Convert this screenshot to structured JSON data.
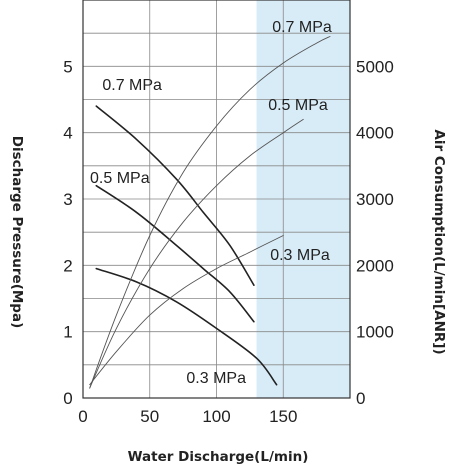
{
  "chart_data": {
    "type": "line",
    "title": "",
    "xlabel": "Water Discharge(L/min)",
    "ylabel": "Discharge Pressure(Mpa)",
    "y2label": "Air Consumption(L/min[ANR])",
    "xlim": [
      0,
      200
    ],
    "ylim": [
      0,
      6
    ],
    "y2lim": [
      0,
      6000
    ],
    "xticks": [
      "0",
      "50",
      "100",
      "150"
    ],
    "yticks": [
      "0",
      "1",
      "2",
      "3",
      "4",
      "5"
    ],
    "y2ticks": [
      "0",
      "1000",
      "2000",
      "3000",
      "4000",
      "5000"
    ],
    "grid": true,
    "highlight_region": {
      "x_from": 130,
      "x_to": 200,
      "color": "#d8ecf8"
    },
    "series": [
      {
        "name": "0.7 MPa",
        "axis": "pressure",
        "x": [
          10,
          40,
          70,
          90,
          110,
          128
        ],
        "y": [
          4.4,
          3.9,
          3.3,
          2.8,
          2.3,
          1.7
        ]
      },
      {
        "name": "0.5 MPa",
        "axis": "pressure",
        "x": [
          10,
          40,
          70,
          90,
          110,
          128
        ],
        "y": [
          3.2,
          2.8,
          2.3,
          1.95,
          1.6,
          1.15
        ]
      },
      {
        "name": "0.3 MPa",
        "axis": "pressure",
        "x": [
          10,
          40,
          70,
          100,
          130,
          145
        ],
        "y": [
          1.95,
          1.75,
          1.45,
          1.05,
          0.6,
          0.2
        ]
      },
      {
        "name": "0.7 MPa",
        "axis": "air",
        "x": [
          5,
          25,
          50,
          75,
          100,
          125,
          150,
          175,
          185
        ],
        "y": [
          150,
          1250,
          2450,
          3400,
          4100,
          4650,
          5050,
          5350,
          5450
        ]
      },
      {
        "name": "0.5 MPa",
        "axis": "air",
        "x": [
          5,
          25,
          50,
          75,
          100,
          125,
          150,
          165
        ],
        "y": [
          150,
          1050,
          1950,
          2650,
          3200,
          3650,
          4000,
          4200
        ]
      },
      {
        "name": "0.3 MPa",
        "axis": "air",
        "x": [
          5,
          25,
          50,
          75,
          100,
          125,
          150
        ],
        "y": [
          200,
          700,
          1250,
          1650,
          1950,
          2200,
          2450
        ]
      }
    ],
    "colors": {
      "pressure_line": "#222222",
      "air_line": "#555555",
      "grid": "#888888"
    }
  }
}
